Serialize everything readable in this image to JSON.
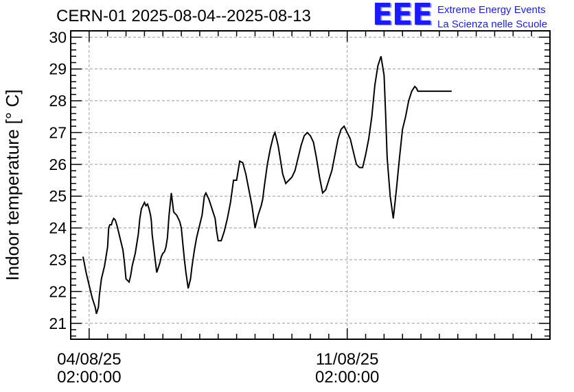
{
  "header": {
    "title": "CERN-01 2025-08-04--2025-08-13",
    "logo_mark": "EEE",
    "logo_line1": "Extreme Energy Events",
    "logo_line2": "La Scienza nelle Scuole"
  },
  "chart_data": {
    "type": "line",
    "title": "CERN-01 2025-08-04--2025-08-13",
    "xlabel": "",
    "ylabel": "Indoor temperature [° C]",
    "x_unit": "hours since 04/08/25 02:00:00",
    "xlim": [
      -12,
      300
    ],
    "ylim": [
      20.5,
      30.2
    ],
    "y_ticks": [
      21,
      22,
      23,
      24,
      25,
      26,
      27,
      28,
      29,
      30
    ],
    "x_ticks": [
      {
        "x": 0,
        "label_date": "04/08/25",
        "label_time": "02:00:00"
      },
      {
        "x": 168,
        "label_date": "11/08/25",
        "label_time": "02:00:00"
      }
    ],
    "grid": true,
    "series": [
      {
        "color": "#000000",
        "x": [
          -4,
          -2,
          0,
          2,
          4,
          4.7,
          6,
          6.7,
          8,
          10,
          12,
          12.7,
          13.5,
          14.5,
          15,
          16,
          17,
          18,
          19,
          20,
          22,
          23,
          24,
          26,
          27,
          28,
          29,
          30,
          31,
          32,
          33,
          34,
          36,
          37,
          38,
          39,
          40,
          40.5,
          41,
          42,
          43,
          44,
          46,
          47,
          48,
          49,
          50,
          51,
          52,
          53.5,
          55,
          57,
          58,
          59,
          60,
          61,
          62,
          63,
          64.5,
          66,
          67,
          68.5,
          70,
          72,
          73.5,
          74,
          75,
          76,
          77,
          78,
          80,
          82,
          83,
          84,
          86,
          88,
          90,
          92,
          94,
          96,
          98,
          100,
          102,
          104,
          106,
          108,
          109,
          110,
          111,
          112,
          113,
          114,
          116,
          118,
          120,
          121,
          122,
          123,
          124,
          125,
          126,
          128,
          130,
          132,
          134,
          136,
          138,
          140,
          142,
          144,
          146,
          148,
          150,
          152,
          154,
          156,
          158,
          160,
          162,
          164,
          166,
          168,
          170,
          171,
          172,
          174,
          176,
          178,
          180,
          182,
          184,
          186,
          188,
          190,
          192,
          193,
          194,
          196,
          198,
          200,
          202,
          204,
          206,
          208,
          210,
          212,
          213,
          214,
          216,
          218,
          220,
          222,
          224,
          226,
          228,
          230,
          232,
          234,
          236
        ],
        "y": [
          23.1,
          22.6,
          22.2,
          21.8,
          21.5,
          21.3,
          21.5,
          21.9,
          22.4,
          22.8,
          23.4,
          24.0,
          24.1,
          24.1,
          24.2,
          24.3,
          24.25,
          24.1,
          23.9,
          23.7,
          23.3,
          22.9,
          22.4,
          22.3,
          22.5,
          22.8,
          23.0,
          23.2,
          23.5,
          23.8,
          24.3,
          24.6,
          24.8,
          24.7,
          24.75,
          24.6,
          24.4,
          24.2,
          23.8,
          23.4,
          23.0,
          22.6,
          22.9,
          23.1,
          23.2,
          23.25,
          23.4,
          23.7,
          24.4,
          25.1,
          24.5,
          24.4,
          24.3,
          24.2,
          24.0,
          23.5,
          23.0,
          22.6,
          22.1,
          22.4,
          22.8,
          23.3,
          23.7,
          24.1,
          24.4,
          24.6,
          25.0,
          25.1,
          25.0,
          24.9,
          24.6,
          24.3,
          23.9,
          23.6,
          23.6,
          23.9,
          24.3,
          24.8,
          25.5,
          25.5,
          26.1,
          26.05,
          25.7,
          25.2,
          24.7,
          24.0,
          24.2,
          24.4,
          24.55,
          24.7,
          24.9,
          25.3,
          26.0,
          26.5,
          26.9,
          27.0,
          26.8,
          26.6,
          26.3,
          26.0,
          25.7,
          25.4,
          25.5,
          25.6,
          25.8,
          26.2,
          26.6,
          26.9,
          27.0,
          26.9,
          26.7,
          26.2,
          25.6,
          25.1,
          25.2,
          25.5,
          25.8,
          26.3,
          26.8,
          27.1,
          27.2,
          27.0,
          26.8,
          26.6,
          26.4,
          26.0,
          25.9,
          25.9,
          26.3,
          26.8,
          27.5,
          28.5,
          29.1,
          29.4,
          28.8,
          27.6,
          26.2,
          25.0,
          24.3,
          25.2,
          26.2,
          27.1,
          27.5,
          28.0,
          28.3,
          28.45,
          28.4,
          28.3,
          28.3,
          28.3,
          28.3,
          28.3,
          28.3,
          28.3,
          28.3,
          28.3,
          28.3,
          28.3,
          28.3
        ]
      }
    ]
  }
}
